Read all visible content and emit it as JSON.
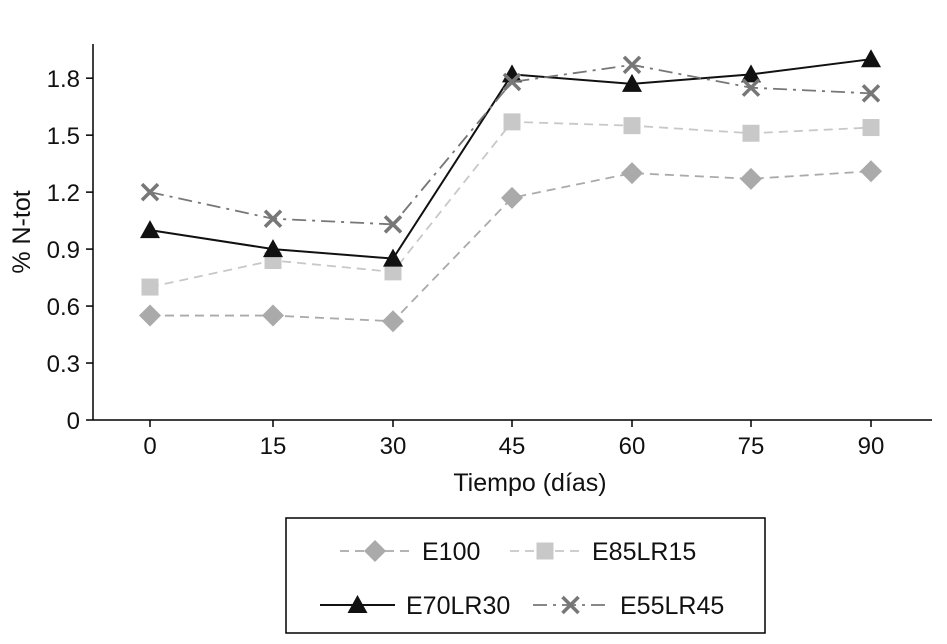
{
  "chart_data": {
    "type": "line",
    "xlabel": "Tiempo (días)",
    "ylabel": "% N-tot",
    "x": [
      0,
      15,
      30,
      45,
      60,
      75,
      90
    ],
    "x_tick_labels": [
      "0",
      "15",
      "30",
      "45",
      "60",
      "75",
      "90"
    ],
    "ylim": [
      0,
      1.98
    ],
    "y_ticks": [
      0,
      0.3,
      0.6,
      0.9,
      1.2,
      1.5,
      1.8
    ],
    "y_tick_labels": [
      "0",
      "0.3",
      "0.6",
      "0.9",
      "1.2",
      "1.5",
      "1.8"
    ],
    "grid": false,
    "legend_placement": "bottom",
    "series": [
      {
        "name": "E100",
        "values": [
          0.55,
          0.55,
          0.52,
          1.17,
          1.3,
          1.27,
          1.31
        ],
        "marker": "diamond",
        "color": "#aaaaaa",
        "line": "dashed"
      },
      {
        "name": "E85LR15",
        "values": [
          0.7,
          0.84,
          0.78,
          1.57,
          1.55,
          1.51,
          1.54
        ],
        "marker": "square",
        "color": "#c8c8c8",
        "line": "dashed"
      },
      {
        "name": "E70LR30",
        "values": [
          1.0,
          0.9,
          0.85,
          1.82,
          1.77,
          1.82,
          1.9
        ],
        "marker": "triangle",
        "color": "#111111",
        "line": "solid"
      },
      {
        "name": "E55LR45",
        "values": [
          1.2,
          1.06,
          1.03,
          1.78,
          1.87,
          1.75,
          1.72
        ],
        "marker": "x",
        "color": "#777777",
        "line": "dashdot"
      }
    ]
  }
}
